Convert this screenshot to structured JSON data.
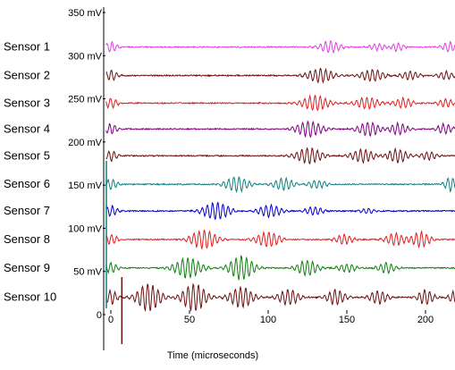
{
  "chart_data": {
    "type": "line",
    "xlabel": "Time (microseconds)",
    "ylabel": "",
    "xlim": [
      -3,
      222
    ],
    "ylim": [
      0,
      350
    ],
    "x_ticks": [
      0,
      50,
      100,
      150,
      200
    ],
    "x_tick_labels": [
      "0",
      "50",
      "100",
      "150",
      "200"
    ],
    "y_ticks": [
      0,
      50,
      100,
      150,
      200,
      250,
      300,
      350
    ],
    "y_tick_labels": [
      "0",
      "50 mV",
      "100 mV",
      "150 mV",
      "200 mV",
      "250 mV",
      "300 mV",
      "350 mV"
    ],
    "grid": false,
    "legend": "none",
    "series": [
      {
        "name": "Sensor 1",
        "offset": 310,
        "color": "#e040e0",
        "bursts": [
          [
            0,
            10,
            6
          ],
          [
            139,
            17,
            7
          ],
          [
            170,
            14,
            4
          ],
          [
            182,
            10,
            5
          ],
          [
            215,
            10,
            6
          ]
        ]
      },
      {
        "name": "Sensor 2",
        "offset": 277,
        "color": "#6b1010",
        "bursts": [
          [
            0,
            10,
            6
          ],
          [
            133,
            20,
            8
          ],
          [
            166,
            18,
            7
          ],
          [
            190,
            14,
            5
          ],
          [
            213,
            12,
            5
          ]
        ]
      },
      {
        "name": "Sensor 3",
        "offset": 245,
        "color": "#e02020",
        "bursts": [
          [
            0,
            10,
            6
          ],
          [
            130,
            20,
            9
          ],
          [
            163,
            18,
            7
          ],
          [
            186,
            14,
            6
          ],
          [
            213,
            12,
            5
          ]
        ]
      },
      {
        "name": "Sensor 4",
        "offset": 215,
        "color": "#800080",
        "bursts": [
          [
            0,
            10,
            6
          ],
          [
            126,
            20,
            9
          ],
          [
            164,
            17,
            8
          ],
          [
            183,
            14,
            7
          ],
          [
            212,
            12,
            6
          ]
        ]
      },
      {
        "name": "Sensor 5",
        "offset": 184,
        "color": "#6b1010",
        "bursts": [
          [
            0,
            10,
            6
          ],
          [
            126,
            20,
            9
          ],
          [
            160,
            18,
            8
          ],
          [
            182,
            16,
            8
          ],
          [
            202,
            12,
            5
          ]
        ]
      },
      {
        "name": "Sensor 6",
        "offset": 151,
        "color": "#108080",
        "bursts": [
          [
            0,
            10,
            6
          ],
          [
            80,
            18,
            9
          ],
          [
            110,
            16,
            7
          ],
          [
            131,
            14,
            5
          ],
          [
            216,
            10,
            8
          ]
        ]
      },
      {
        "name": "Sensor 7",
        "offset": 120,
        "color": "#0000cc",
        "bursts": [
          [
            0,
            10,
            6
          ],
          [
            67,
            20,
            10
          ],
          [
            101,
            18,
            7
          ],
          [
            129,
            14,
            5
          ],
          [
            163,
            12,
            3
          ]
        ]
      },
      {
        "name": "Sensor 8",
        "offset": 87,
        "color": "#e02020",
        "bursts": [
          [
            0,
            10,
            6
          ],
          [
            59,
            20,
            11
          ],
          [
            100,
            18,
            9
          ],
          [
            148,
            14,
            6
          ],
          [
            181,
            16,
            7
          ],
          [
            197,
            14,
            9
          ]
        ]
      },
      {
        "name": "Sensor 9",
        "offset": 54,
        "color": "#108010",
        "bursts": [
          [
            0,
            10,
            6
          ],
          [
            49,
            20,
            12
          ],
          [
            83,
            18,
            14
          ],
          [
            125,
            16,
            9
          ],
          [
            150,
            14,
            5
          ],
          [
            175,
            14,
            6
          ]
        ]
      },
      {
        "name": "Sensor 10",
        "offset": 20,
        "color": "#6b1010",
        "bursts": [
          [
            0,
            10,
            8
          ],
          [
            24,
            18,
            16
          ],
          [
            53,
            18,
            16
          ],
          [
            83,
            18,
            12
          ],
          [
            113,
            16,
            9
          ],
          [
            143,
            14,
            9
          ],
          [
            170,
            14,
            8
          ],
          [
            200,
            12,
            9
          ],
          [
            218,
            8,
            7
          ]
        ]
      }
    ]
  }
}
